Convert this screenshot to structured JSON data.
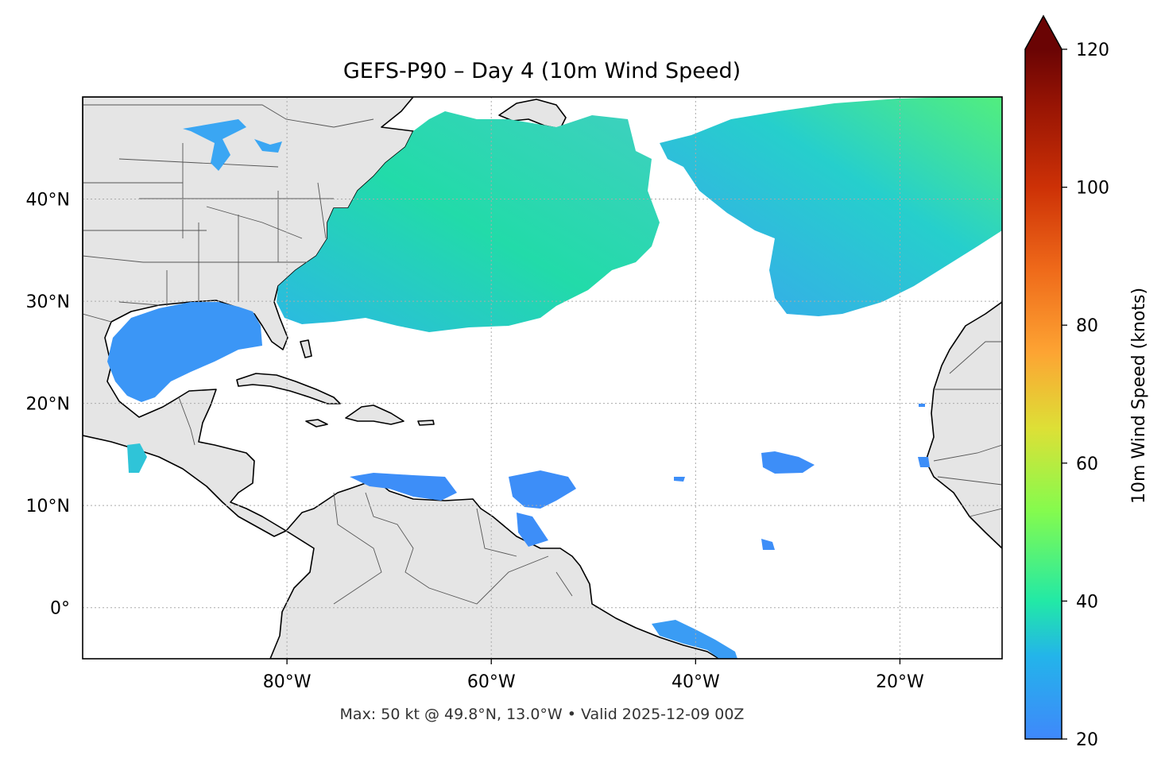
{
  "title": "GEFS-P90 – Day 4 (10m Wind Speed)",
  "footer": "Max: 50 kt @ 49.8°N, 13.0°W • Valid 2025-12-09 00Z",
  "map": {
    "lon_range": [
      -100,
      -10
    ],
    "lat_range": [
      -5,
      50
    ],
    "lon_ticks": [
      {
        "value": -80,
        "label": "80°W"
      },
      {
        "value": -60,
        "label": "60°W"
      },
      {
        "value": -40,
        "label": "40°W"
      },
      {
        "value": -20,
        "label": "20°W"
      }
    ],
    "lat_ticks": [
      {
        "value": 0,
        "label": "0°"
      },
      {
        "value": 10,
        "label": "10°N"
      },
      {
        "value": 20,
        "label": "20°N"
      },
      {
        "value": 30,
        "label": "30°N"
      },
      {
        "value": 40,
        "label": "40°N"
      }
    ],
    "gridlines": "dotted",
    "land_color": "#e5e5e5",
    "ocean_color": "#ffffff"
  },
  "colorbar": {
    "label": "10m Wind Speed (knots)",
    "range": [
      20,
      120
    ],
    "extend": "max",
    "ticks": [
      {
        "value": 20,
        "label": "20"
      },
      {
        "value": 40,
        "label": "40"
      },
      {
        "value": 60,
        "label": "60"
      },
      {
        "value": 80,
        "label": "80"
      },
      {
        "value": 100,
        "label": "100"
      },
      {
        "value": 120,
        "label": "120"
      }
    ],
    "colors": [
      "#3f88fb",
      "#22c4e0",
      "#22e9a6",
      "#84fb4e",
      "#dde036",
      "#fda433",
      "#ef6a1a",
      "#cd3106",
      "#971404",
      "#6a0404"
    ]
  },
  "max_point": {
    "lat": 49.8,
    "lon": -13.0,
    "value": 50
  },
  "wind_regions": [
    {
      "name": "northwest-atlantic-wind-band",
      "level": "33 kt"
    },
    {
      "name": "northeast-atlantic-wind-band",
      "level": "32 kt"
    },
    {
      "name": "gulf-of-mexico-wind-area",
      "level": "24 kt"
    },
    {
      "name": "caribbean-wind-patches",
      "level": "22 kt"
    }
  ]
}
